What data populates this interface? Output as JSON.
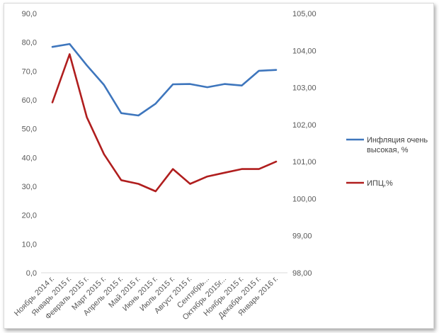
{
  "chart_data": {
    "type": "line",
    "categories": [
      "Ноябрь 2014 г.",
      "Январь 2015 г.",
      "Февраль 2015 г.",
      "Март 2015 г.",
      "Апрель 2015 г.",
      "Май 2015 г.",
      "Июнь 2015 г.",
      "Июль 2015 г.",
      "Август 2015 г.",
      "Сентябрь...",
      "Октябрь 2015г...",
      "Ноябрь 2015 г.",
      "Декабрь 2015 г.",
      "Январь 2016 г."
    ],
    "series": [
      {
        "name": "Инфляция очень высокая, %",
        "axis": "left",
        "color": "#3e76bd",
        "values": [
          78.4,
          79.4,
          72.0,
          65.2,
          55.4,
          54.6,
          58.7,
          65.4,
          65.5,
          64.4,
          65.5,
          65.0,
          70.1,
          70.4
        ]
      },
      {
        "name": "ИПЦ,%",
        "axis": "right",
        "color": "#b01e1e",
        "values": [
          102.6,
          103.9,
          102.2,
          101.2,
          100.5,
          100.4,
          100.2,
          100.8,
          100.4,
          100.6,
          100.7,
          100.8,
          100.8,
          101.0
        ]
      }
    ],
    "y_left": {
      "min": 0,
      "max": 90,
      "step": 10,
      "ticks": [
        "0,0",
        "10,0",
        "20,0",
        "30,0",
        "40,0",
        "50,0",
        "60,0",
        "70,0",
        "80,0",
        "90,0"
      ]
    },
    "y_right": {
      "min": 98,
      "max": 105,
      "step": 1,
      "ticks": [
        "98,00",
        "99,00",
        "100,00",
        "101,00",
        "102,00",
        "103,00",
        "104,00",
        "105,00"
      ]
    },
    "grid": false,
    "legend": {
      "position": "right",
      "items": [
        {
          "lines": [
            "Инфляция очень",
            "высокая, %"
          ],
          "color": "#3e76bd"
        },
        {
          "lines": [
            "ИПЦ,%"
          ],
          "color": "#b01e1e"
        }
      ]
    }
  }
}
